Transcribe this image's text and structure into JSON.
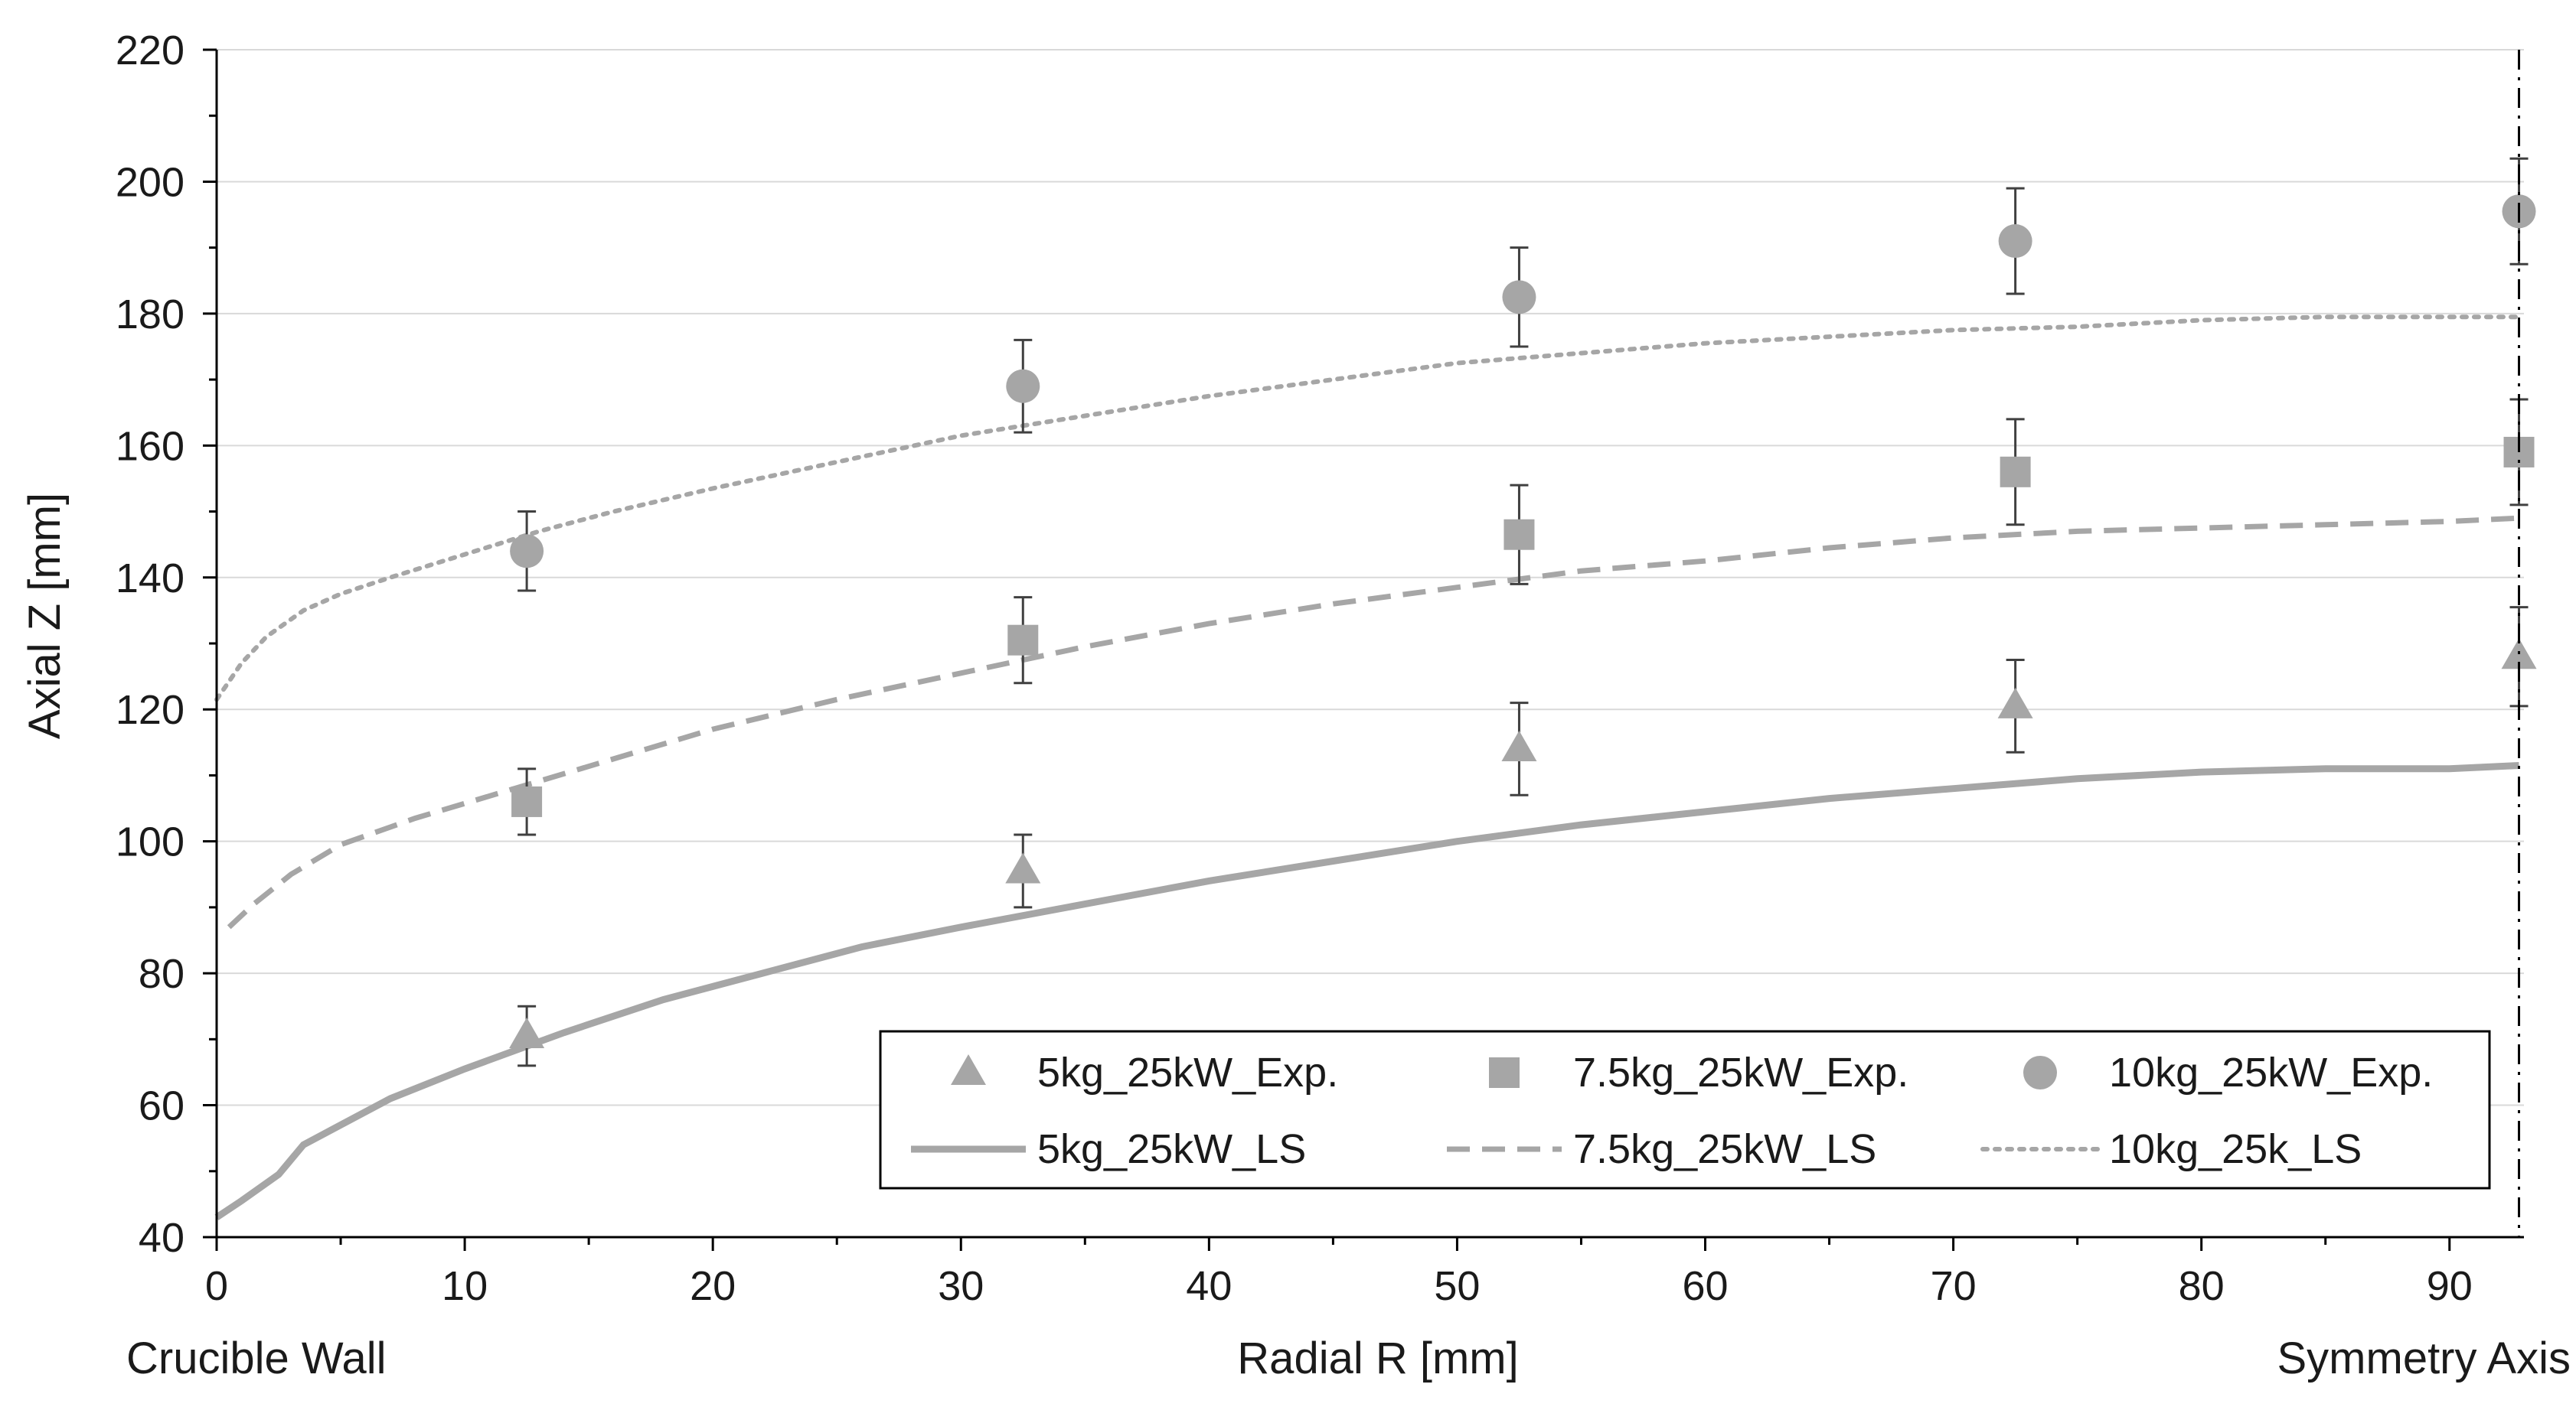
{
  "chart_data": {
    "type": "scatter",
    "title": "",
    "xlabel": "Radial R [mm]",
    "ylabel": "Axial Z [mm]",
    "x_left_label": "Crucible Wall",
    "x_right_label": "Symmetry Axis",
    "xlim": [
      0,
      93
    ],
    "ylim": [
      40,
      220
    ],
    "x_ticks": [
      0,
      10,
      20,
      30,
      40,
      50,
      60,
      70,
      80,
      90
    ],
    "y_ticks": [
      40,
      60,
      80,
      100,
      120,
      140,
      160,
      180,
      200,
      220
    ],
    "x_minor_step": 5,
    "y_minor_step": 10,
    "grid": "horizontal-major",
    "symmetry_axis_x": 92.8,
    "legend_position": "bottom-right",
    "colors": {
      "series": "#a6a6a6",
      "axis": "#000000",
      "grid": "#d9d9d9",
      "text": "#1a1a1a"
    },
    "series": [
      {
        "name": "5kg_25kW_Exp.",
        "kind": "markers",
        "marker": "triangle",
        "x": [
          12.5,
          32.5,
          52.5,
          72.5,
          92.8
        ],
        "y": [
          70.5,
          95.5,
          114,
          120.5,
          128
        ],
        "yerr": [
          4.5,
          5.5,
          7,
          7,
          7.5
        ]
      },
      {
        "name": "7.5kg_25kW_Exp.",
        "kind": "markers",
        "marker": "square",
        "x": [
          12.5,
          32.5,
          52.5,
          72.5,
          92.8
        ],
        "y": [
          106,
          130.5,
          146.5,
          156,
          159
        ],
        "yerr": [
          5,
          6.5,
          7.5,
          8,
          8
        ]
      },
      {
        "name": "10kg_25kW_Exp.",
        "kind": "markers",
        "marker": "circle",
        "x": [
          12.5,
          32.5,
          52.5,
          72.5,
          92.8
        ],
        "y": [
          144,
          169,
          182.5,
          191,
          195.5
        ],
        "yerr": [
          6,
          7,
          7.5,
          8,
          8
        ]
      },
      {
        "name": "5kg_25kW_LS",
        "kind": "line",
        "dash": "solid",
        "x": [
          0,
          1,
          2.5,
          3.5,
          5,
          7,
          10,
          14,
          18,
          22,
          26,
          30,
          35,
          40,
          45,
          50,
          55,
          60,
          65,
          70,
          75,
          80,
          85,
          90,
          92.8
        ],
        "y": [
          43,
          45.5,
          49.5,
          54,
          57,
          61,
          65.5,
          71,
          76,
          80,
          84,
          87,
          90.5,
          94,
          97,
          100,
          102.5,
          104.5,
          106.5,
          108,
          109.5,
          110.5,
          111,
          111,
          111.5
        ]
      },
      {
        "name": "7.5kg_25kW_LS",
        "kind": "line",
        "dash": "dashed",
        "x": [
          0.5,
          1.5,
          3,
          5,
          8,
          12,
          16,
          20,
          25,
          30,
          35,
          40,
          45,
          50,
          55,
          60,
          65,
          70,
          75,
          80,
          85,
          90,
          92.8
        ],
        "y": [
          87,
          90.5,
          95,
          99.5,
          103.5,
          108,
          112.5,
          117,
          121.5,
          125.5,
          129.5,
          133,
          136,
          138.5,
          141,
          142.5,
          144.5,
          146,
          147,
          147.5,
          148,
          148.5,
          149
        ]
      },
      {
        "name": "10kg_25k_LS",
        "kind": "line",
        "dash": "dotted",
        "x": [
          0,
          1,
          2,
          3.5,
          5,
          7,
          10,
          13,
          16,
          20,
          25,
          30,
          35,
          40,
          45,
          50,
          55,
          60,
          65,
          70,
          75,
          80,
          85,
          90,
          92.8
        ],
        "y": [
          121.5,
          127,
          131,
          135,
          137.5,
          140,
          143.5,
          147,
          150,
          153.5,
          157.5,
          161.5,
          164.5,
          167.5,
          170,
          172.5,
          174,
          175.5,
          176.5,
          177.5,
          178,
          179,
          179.5,
          179.5,
          179.5
        ]
      }
    ],
    "legend_rows": [
      [
        "5kg_25kW_Exp.",
        "7.5kg_25kW_Exp.",
        "10kg_25kW_Exp."
      ],
      [
        "5kg_25kW_LS",
        "7.5kg_25kW_LS",
        "10kg_25k_LS"
      ]
    ]
  }
}
